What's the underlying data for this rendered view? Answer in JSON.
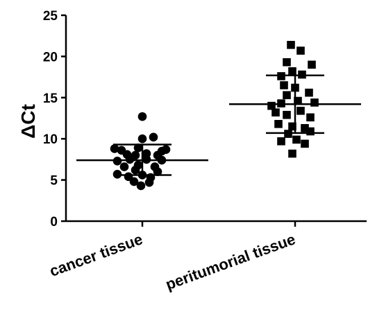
{
  "chart_data": {
    "type": "scatter",
    "ylabel": "ΔCt",
    "ylim": [
      0,
      25
    ],
    "yticks": [
      0,
      5,
      10,
      15,
      20,
      25
    ],
    "yticklabels": [
      "0",
      "5",
      "10",
      "15",
      "20",
      "25"
    ],
    "categories": [
      "cancer tissue",
      "peritumorial tissue"
    ],
    "grid": false,
    "legend": "none",
    "series": [
      {
        "marker": "circle",
        "mean": 7.4,
        "sd_upper": 9.3,
        "sd_lower": 5.6,
        "points": [
          {
            "x": -0.4,
            "y": 8.8
          },
          {
            "x": -0.3,
            "y": 8.6
          },
          {
            "x": 0.0,
            "y": 10.0
          },
          {
            "x": 0.16,
            "y": 10.2
          },
          {
            "x": -0.06,
            "y": 8.9
          },
          {
            "x": 0.28,
            "y": 8.5
          },
          {
            "x": 0.34,
            "y": 8.7
          },
          {
            "x": -0.22,
            "y": 8.1
          },
          {
            "x": -0.1,
            "y": 8.0
          },
          {
            "x": 0.06,
            "y": 8.2
          },
          {
            "x": 0.22,
            "y": 8.0
          },
          {
            "x": -0.36,
            "y": 7.3
          },
          {
            "x": -0.18,
            "y": 7.5
          },
          {
            "x": 0.06,
            "y": 7.5
          },
          {
            "x": 0.28,
            "y": 7.4
          },
          {
            "x": -0.26,
            "y": 6.6
          },
          {
            "x": -0.06,
            "y": 6.8
          },
          {
            "x": 0.18,
            "y": 6.6
          },
          {
            "x": -0.1,
            "y": 6.2
          },
          {
            "x": 0.22,
            "y": 6.0
          },
          {
            "x": -0.36,
            "y": 5.7
          },
          {
            "x": -0.2,
            "y": 5.4
          },
          {
            "x": 0.0,
            "y": 5.6
          },
          {
            "x": 0.12,
            "y": 5.3
          },
          {
            "x": -0.12,
            "y": 4.8
          },
          {
            "x": 0.1,
            "y": 4.7
          },
          {
            "x": -0.02,
            "y": 4.3
          },
          {
            "x": 0.0,
            "y": 12.7
          }
        ]
      },
      {
        "marker": "square",
        "mean": 14.2,
        "sd_upper": 17.7,
        "sd_lower": 10.7,
        "points": [
          {
            "x": -0.06,
            "y": 21.4
          },
          {
            "x": 0.08,
            "y": 20.7
          },
          {
            "x": -0.12,
            "y": 19.3
          },
          {
            "x": 0.24,
            "y": 19.0
          },
          {
            "x": -0.2,
            "y": 17.6
          },
          {
            "x": -0.04,
            "y": 18.2
          },
          {
            "x": 0.1,
            "y": 17.8
          },
          {
            "x": -0.16,
            "y": 16.5
          },
          {
            "x": 0.0,
            "y": 16.2
          },
          {
            "x": -0.12,
            "y": 15.3
          },
          {
            "x": 0.2,
            "y": 15.6
          },
          {
            "x": -0.34,
            "y": 14.0
          },
          {
            "x": -0.2,
            "y": 14.3
          },
          {
            "x": 0.04,
            "y": 14.6
          },
          {
            "x": 0.28,
            "y": 14.4
          },
          {
            "x": -0.28,
            "y": 13.2
          },
          {
            "x": -0.12,
            "y": 12.9
          },
          {
            "x": 0.08,
            "y": 13.4
          },
          {
            "x": 0.22,
            "y": 12.6
          },
          {
            "x": -0.24,
            "y": 11.8
          },
          {
            "x": -0.04,
            "y": 11.5
          },
          {
            "x": 0.14,
            "y": 11.3
          },
          {
            "x": -0.1,
            "y": 10.6
          },
          {
            "x": 0.22,
            "y": 10.9
          },
          {
            "x": -0.2,
            "y": 9.7
          },
          {
            "x": 0.02,
            "y": 9.9
          },
          {
            "x": 0.14,
            "y": 9.4
          },
          {
            "x": -0.04,
            "y": 8.2
          }
        ]
      }
    ]
  }
}
